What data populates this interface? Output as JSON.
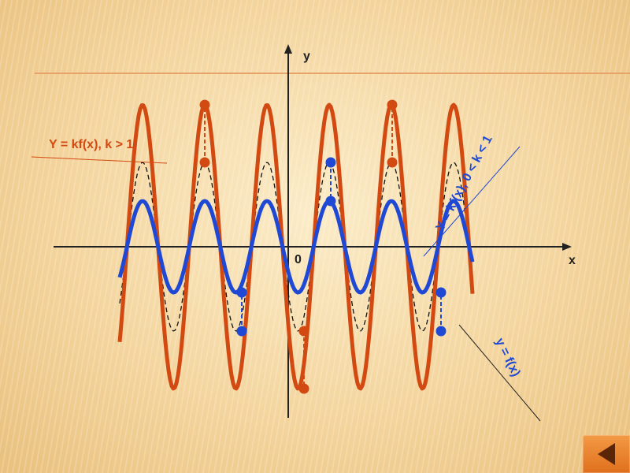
{
  "labels": {
    "y_axis": "y",
    "x_axis": "x",
    "origin": "0",
    "stretch": "Y = kf(x), k > 1",
    "compress": "Y = kf(x), 0 < k < 1",
    "base": "y = f(x)"
  },
  "colors": {
    "stretch": "#d24a12",
    "compress": "#1f48d4",
    "base": "#000000",
    "orange_line": "#e8a36a",
    "nav_button": "#ec7f2a"
  },
  "nav": {
    "icon": "triangle-left-icon"
  }
}
